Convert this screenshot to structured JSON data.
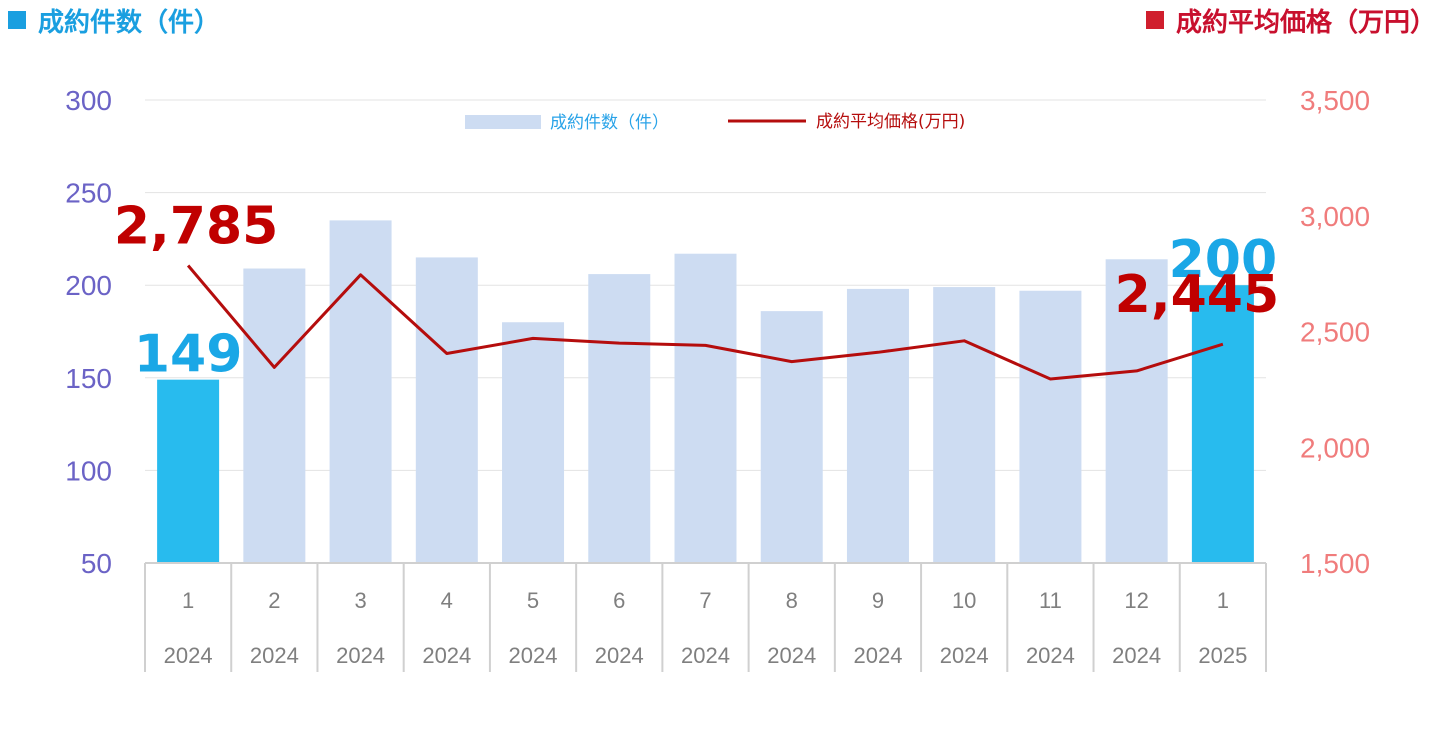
{
  "header": {
    "left_title": "成約件数（件）",
    "right_title": "成約平均価格（万円）"
  },
  "colors": {
    "bar_normal": "#cddcf2",
    "bar_highlight": "#28bbee",
    "line": "#b50d0d",
    "left_axis": "#6b63c6",
    "right_axis": "#f07c7c"
  },
  "chart_data": {
    "type": "bar",
    "combo": "bar+line",
    "categories": [
      {
        "month": "1",
        "year": "2024"
      },
      {
        "month": "2",
        "year": "2024"
      },
      {
        "month": "3",
        "year": "2024"
      },
      {
        "month": "4",
        "year": "2024"
      },
      {
        "month": "5",
        "year": "2024"
      },
      {
        "month": "6",
        "year": "2024"
      },
      {
        "month": "7",
        "year": "2024"
      },
      {
        "month": "8",
        "year": "2024"
      },
      {
        "month": "9",
        "year": "2024"
      },
      {
        "month": "10",
        "year": "2024"
      },
      {
        "month": "11",
        "year": "2024"
      },
      {
        "month": "12",
        "year": "2024"
      },
      {
        "month": "1",
        "year": "2025"
      }
    ],
    "series": [
      {
        "name": "成約件数（件）",
        "type": "bar",
        "axis": "left",
        "values": [
          149,
          209,
          235,
          215,
          180,
          206,
          217,
          186,
          198,
          199,
          197,
          214,
          200
        ],
        "highlighted": [
          0,
          12
        ]
      },
      {
        "name": "成約平均価格(万円)",
        "type": "line",
        "axis": "right",
        "values": [
          2785,
          2345,
          2745,
          2405,
          2470,
          2450,
          2440,
          2370,
          2410,
          2460,
          2295,
          2330,
          2445
        ]
      }
    ],
    "left_axis": {
      "min": 50,
      "max": 300,
      "step": 50,
      "ticks": [
        "50",
        "100",
        "150",
        "200",
        "250",
        "300"
      ]
    },
    "right_axis": {
      "min": 1500,
      "max": 3500,
      "step": 500,
      "ticks": [
        "1,500",
        "2,000",
        "2,500",
        "3,000",
        "3,500"
      ]
    },
    "data_labels": [
      {
        "series": 0,
        "index": 0,
        "text": "149"
      },
      {
        "series": 0,
        "index": 12,
        "text": "200"
      },
      {
        "series": 1,
        "index": 0,
        "text": "2,785"
      },
      {
        "series": 1,
        "index": 12,
        "text": "2,445"
      }
    ],
    "legend_position": "top-center",
    "grid": true
  }
}
